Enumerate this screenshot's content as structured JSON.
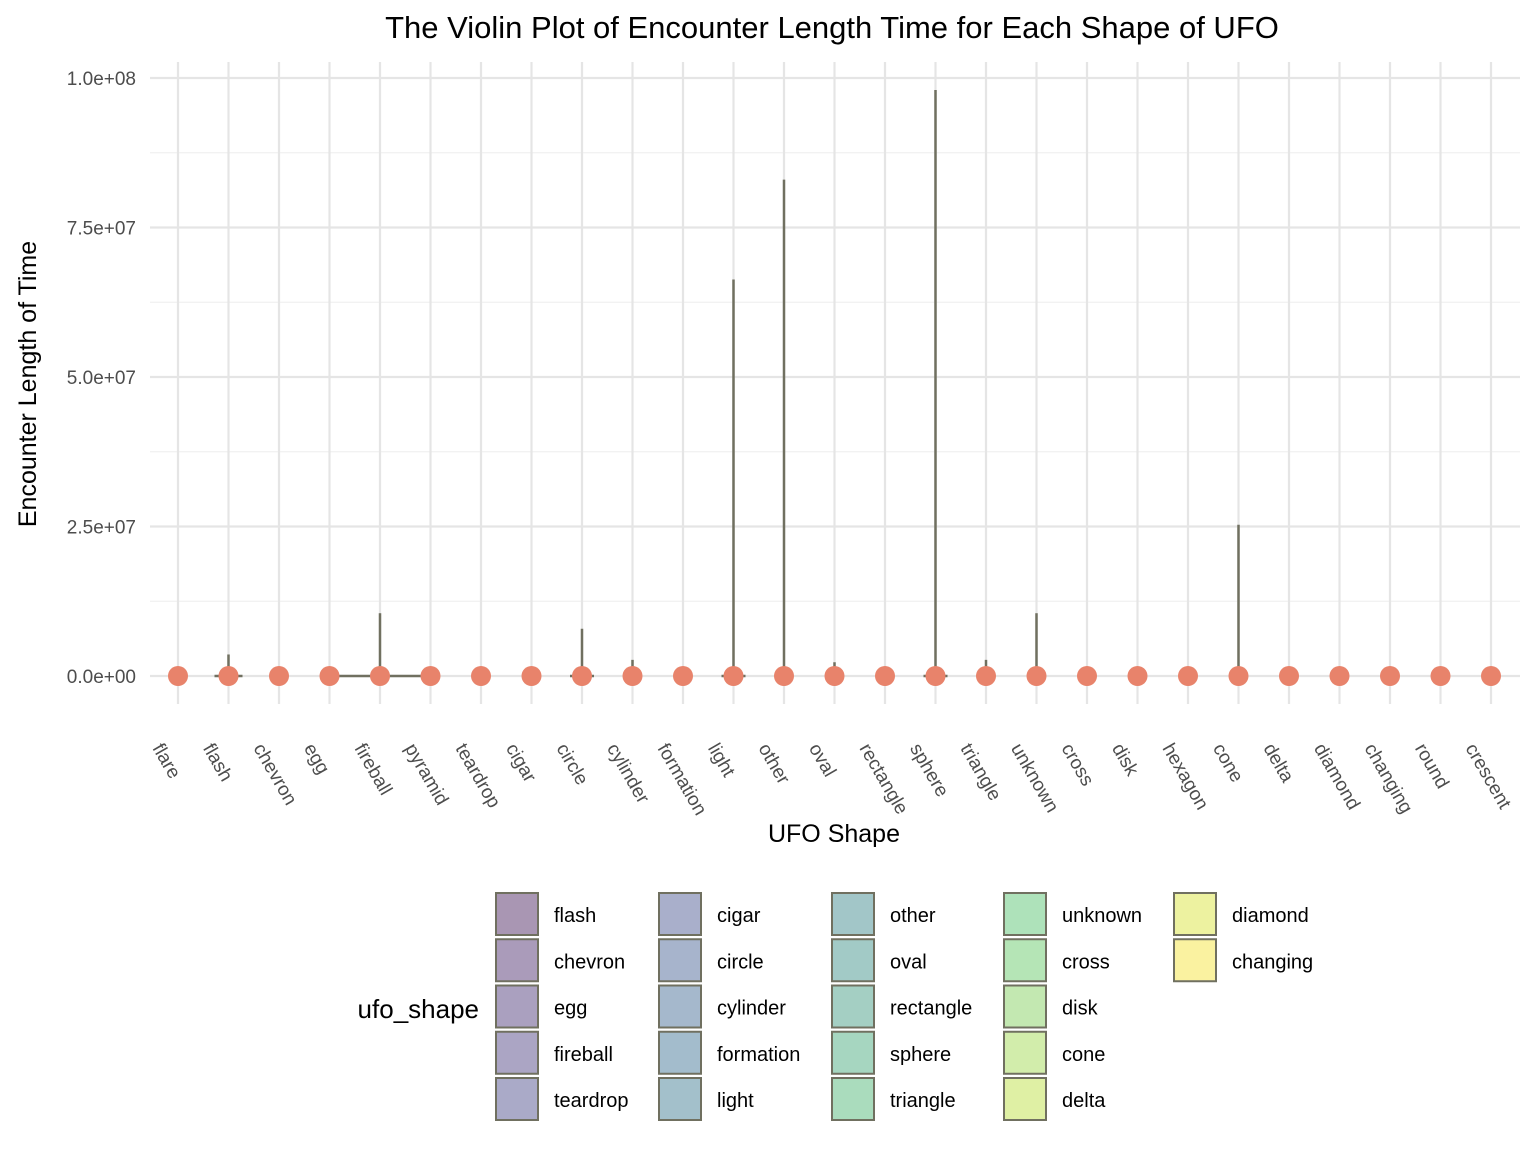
{
  "chart_data": {
    "type": "violin",
    "title": "The Violin Plot of Encounter Length Time for Each Shape of UFO",
    "xlabel": "UFO Shape",
    "ylabel": "Encounter Length of Time",
    "ylim": [
      0,
      100000000
    ],
    "y_ticks": [
      0,
      25000000,
      50000000,
      75000000,
      100000000
    ],
    "y_tick_labels": [
      "0.0e+00",
      "2.5e+07",
      "5.0e+07",
      "7.5e+07",
      "1.0e+08"
    ],
    "grid": true,
    "point_color": "#E8836B",
    "outline_color": "#707060",
    "categories": [
      "flare",
      "flash",
      "chevron",
      "egg",
      "fireball",
      "pyramid",
      "teardrop",
      "cigar",
      "circle",
      "cylinder",
      "formation",
      "light",
      "other",
      "oval",
      "rectangle",
      "sphere",
      "triangle",
      "unknown",
      "cross",
      "disk",
      "hexagon",
      "cone",
      "delta",
      "diamond",
      "changing",
      "round",
      "crescent"
    ],
    "max_values": [
      0,
      3600000,
      0,
      0,
      10500000,
      0,
      0,
      900000,
      7900000,
      2700000,
      0,
      66300000,
      83000000,
      2300000,
      0,
      98000000,
      2700000,
      10500000,
      0,
      0,
      0,
      25300000,
      0,
      0,
      0,
      0,
      0
    ],
    "point_values": [
      0,
      0,
      0,
      0,
      0,
      0,
      0,
      0,
      0,
      0,
      0,
      0,
      0,
      0,
      0,
      0,
      0,
      0,
      0,
      0,
      0,
      0,
      0,
      0,
      0,
      0,
      0
    ],
    "violin_half_widths": [
      0,
      14,
      0,
      0,
      46,
      0,
      0,
      4,
      12,
      4,
      0,
      12,
      8,
      4,
      0,
      12,
      4,
      4,
      0,
      0,
      0,
      2,
      0,
      0,
      0,
      0,
      0
    ],
    "legend": {
      "title": "ufo_shape",
      "placement": "bottom",
      "items": [
        {
          "label": "flash",
          "color": "#A996B3"
        },
        {
          "label": "chevron",
          "color": "#AA9BBA"
        },
        {
          "label": "egg",
          "color": "#AAA0BF"
        },
        {
          "label": "fireball",
          "color": "#ABA5C4"
        },
        {
          "label": "teardrop",
          "color": "#AAAAC8"
        },
        {
          "label": "cigar",
          "color": "#A9AFCB"
        },
        {
          "label": "circle",
          "color": "#A7B4CC"
        },
        {
          "label": "cylinder",
          "color": "#A5B8CC"
        },
        {
          "label": "formation",
          "color": "#A3BCCC"
        },
        {
          "label": "light",
          "color": "#A3C0CB"
        },
        {
          "label": "other",
          "color": "#A2C6C8"
        },
        {
          "label": "oval",
          "color": "#A2CAC6"
        },
        {
          "label": "rectangle",
          "color": "#A4CFC3"
        },
        {
          "label": "sphere",
          "color": "#A6D6C0"
        },
        {
          "label": "triangle",
          "color": "#AADCBD"
        },
        {
          "label": "unknown",
          "color": "#AEE2BA"
        },
        {
          "label": "cross",
          "color": "#B5E5B6"
        },
        {
          "label": "disk",
          "color": "#C3E8B1"
        },
        {
          "label": "cone",
          "color": "#D2EDAB"
        },
        {
          "label": "delta",
          "color": "#DFF0A4"
        },
        {
          "label": "diamond",
          "color": "#EDF2A0"
        },
        {
          "label": "changing",
          "color": "#FAF2A0"
        }
      ]
    }
  }
}
